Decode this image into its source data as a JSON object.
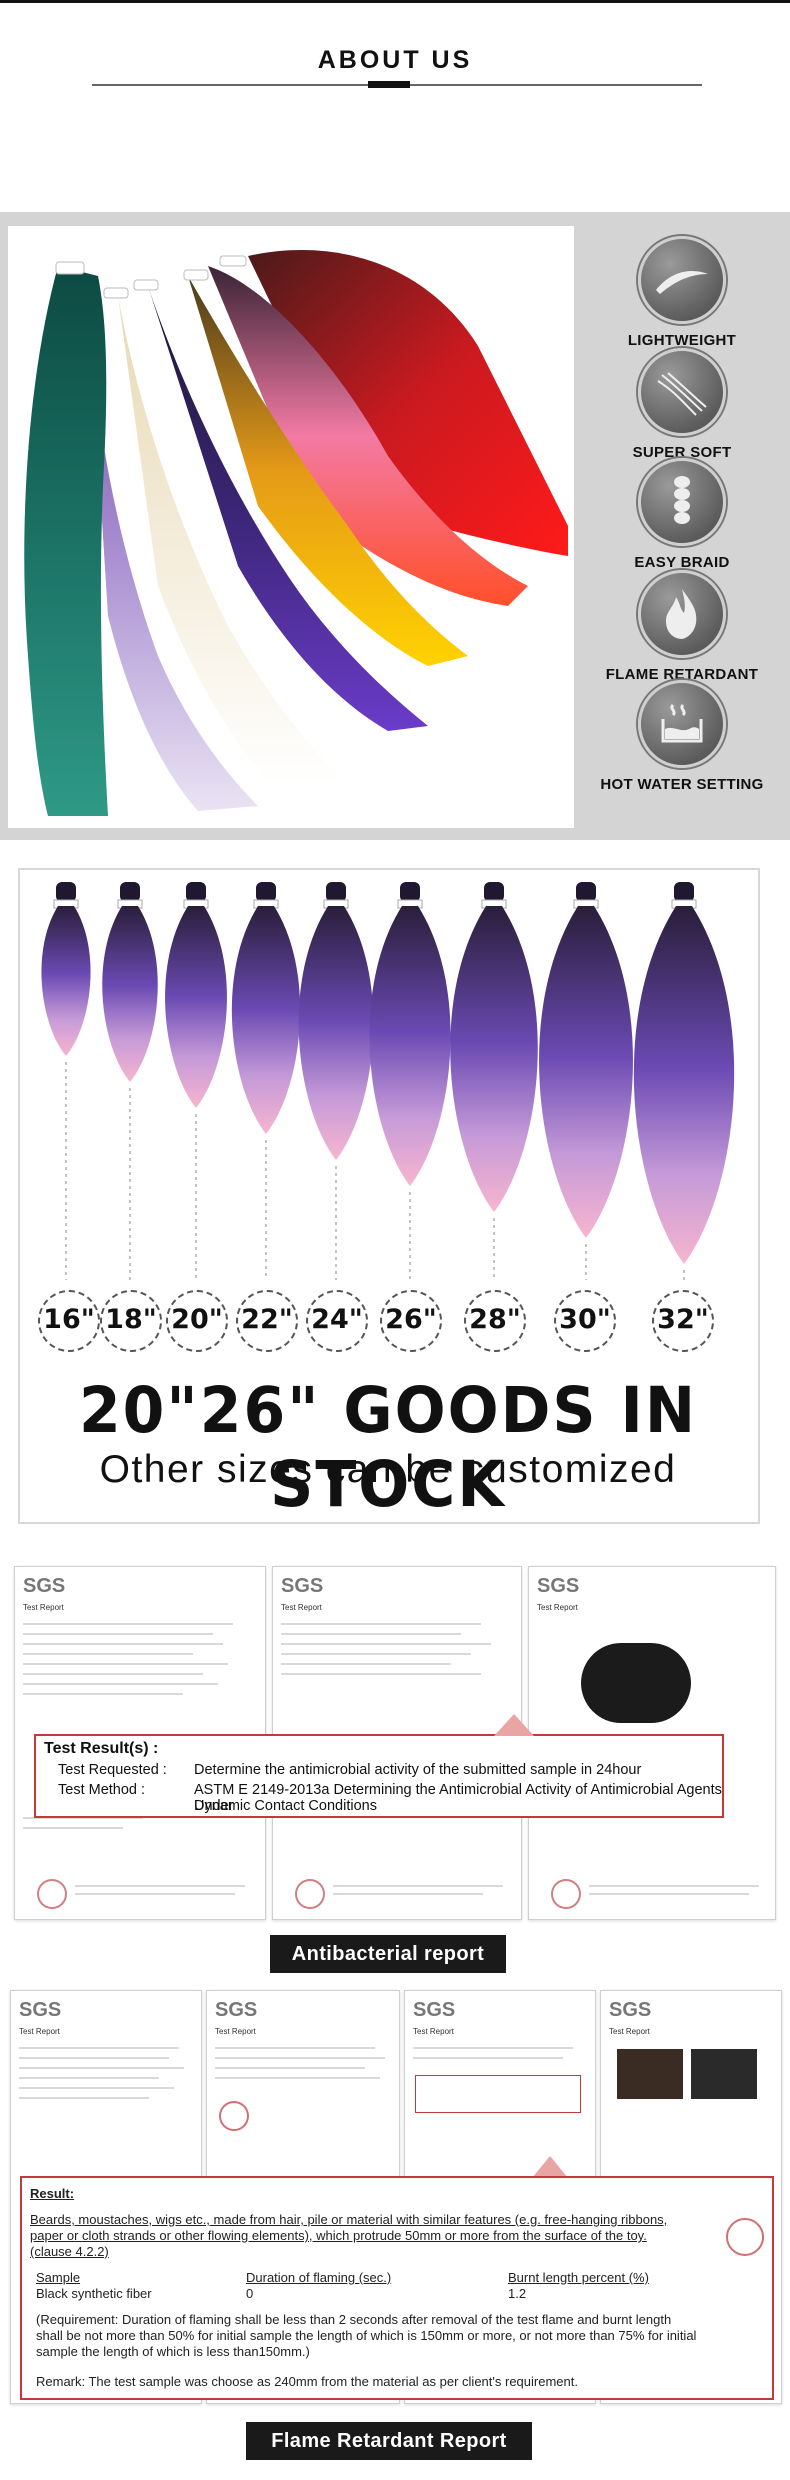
{
  "header": {
    "title": "ABOUT US"
  },
  "features": [
    {
      "label": "LIGHTWEIGHT",
      "icon": "feather-icon"
    },
    {
      "label": "SUPER SOFT",
      "icon": "strands-icon"
    },
    {
      "label": "EASY BRAID",
      "icon": "braid-icon"
    },
    {
      "label": "FLAME RETARDANT",
      "icon": "flame-icon"
    },
    {
      "label": "HOT WATER SETTING",
      "icon": "water-icon"
    }
  ],
  "lengths": [
    "16\"",
    "18\"",
    "20\"",
    "22\"",
    "24\"",
    "26\"",
    "28\"",
    "30\"",
    "32\""
  ],
  "stock": {
    "title": "20\"26\" GOODS IN STOCK",
    "subtitle": "Other sizes can be customized"
  },
  "antibacterial": {
    "result_title": "Test Result(s) :",
    "rows": [
      {
        "key": "Test Requested :",
        "value": "Determine the antimicrobial activity of the submitted sample in 24hour"
      },
      {
        "key": "Test Method :",
        "value": "ASTM E 2149-2013a Determining the Antimicrobial Activity of Antimicrobial Agents Under"
      },
      {
        "key": "",
        "value": "Dynamic Contact Conditions"
      }
    ],
    "label": "Antibacterial report"
  },
  "flame": {
    "result_title": "Result:",
    "line1": "Beards, moustaches, wigs etc., made from hair, pile or material with similar features (e.g. free-hanging ribbons,",
    "line2": "paper or cloth strands or other flowing elements), which protrude 50mm or more from the surface of the toy.",
    "line3": "(clause 4.2.2)",
    "col_sample": "Sample",
    "col_duration": "Duration of flaming (sec.)",
    "col_burnt": "Burnt length percent (%)",
    "val_sample": "Black synthetic fiber",
    "val_duration": "0",
    "val_burnt": "1.2",
    "req1": "(Requirement: Duration of flaming shall be less than 2 seconds after removal of the test flame and burnt length",
    "req2": "shall be not more than 50% for initial sample the length of which is 150mm or more, or not more than 75% for initial",
    "req3": "sample the length of which is less than150mm.)",
    "remark": "Remark: The test sample was choose as 240mm from the material as per client's requirement.",
    "label": "Flame Retardant Report"
  },
  "sgs_logo": "SGS",
  "doc_header": "Test Report",
  "colors": {
    "accent_red": "#c33a3a",
    "label_bg": "#1a1a1a",
    "panel_gray": "#d4d4d4"
  }
}
